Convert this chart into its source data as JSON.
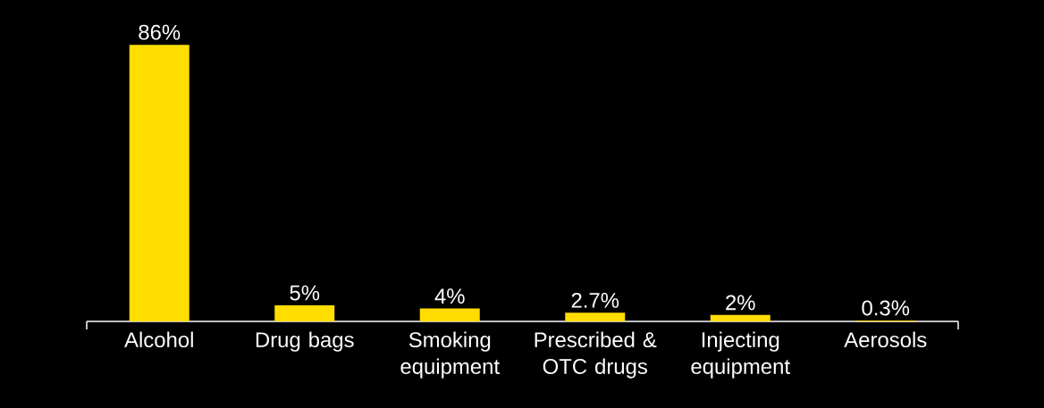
{
  "chart_data": {
    "type": "bar",
    "categories": [
      "Alcohol",
      "Drug bags",
      "Smoking equipment",
      "Prescribed & OTC drugs",
      "Injecting equipment",
      "Aerosols"
    ],
    "values": [
      86,
      5,
      4,
      2.7,
      2,
      0.3
    ],
    "value_labels": [
      "86%",
      "5%",
      "4%",
      "2.7%",
      "2%",
      "0.3%"
    ],
    "color": "#ffdd00"
  }
}
